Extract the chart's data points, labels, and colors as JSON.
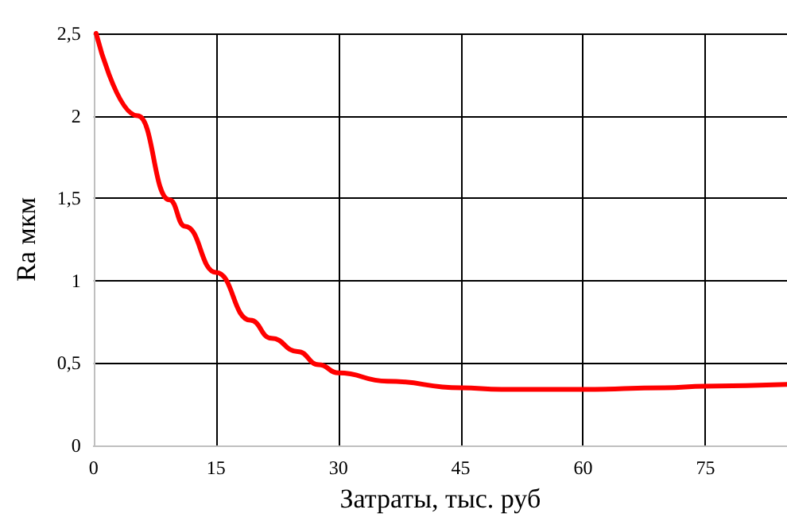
{
  "chart_data": {
    "type": "line",
    "xlabel": "Затраты, тыс. руб",
    "ylabel": "Ra мкм",
    "x": [
      0.3,
      5.4,
      9.3,
      11.2,
      15,
      19.2,
      21.8,
      25,
      27.6,
      30,
      36,
      45,
      50,
      60,
      70,
      75,
      85
    ],
    "series": [
      {
        "color": "#ff0000",
        "values": [
          2.5,
          2.0,
          1.49,
          1.33,
          1.05,
          0.76,
          0.65,
          0.57,
          0.49,
          0.44,
          0.39,
          0.35,
          0.34,
          0.34,
          0.35,
          0.36,
          0.37
        ]
      }
    ],
    "xlim": [
      0,
      85
    ],
    "xticks": [
      0,
      15,
      30,
      45,
      60,
      75
    ],
    "ylim": [
      0,
      2.5
    ],
    "yticks": [
      0,
      {
        "value": 0.5,
        "label": "0,5"
      },
      1,
      {
        "value": 1.5,
        "label": "1,5"
      },
      2,
      {
        "value": 2.5,
        "label": "2,5"
      }
    ],
    "grid": true,
    "marker": "none",
    "line_style": "solid"
  }
}
